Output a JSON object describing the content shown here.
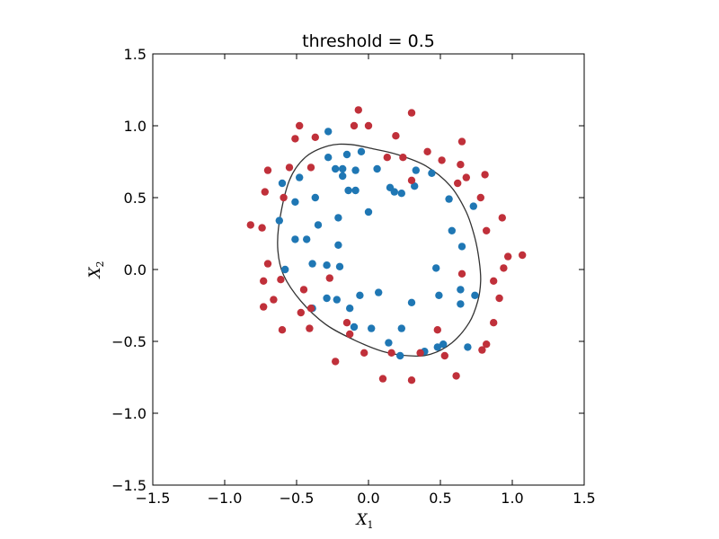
{
  "chart_data": {
    "type": "scatter",
    "title": "threshold = 0.5",
    "xlabel": "X",
    "xlabel_sub": "1",
    "ylabel": "X",
    "ylabel_sub": "2",
    "xlim": [
      -1.5,
      1.5
    ],
    "ylim": [
      -1.5,
      1.5
    ],
    "xticks": [
      -1.5,
      -1.0,
      -0.5,
      0.0,
      0.5,
      1.0,
      1.5
    ],
    "yticks": [
      -1.5,
      -1.0,
      -0.5,
      0.0,
      0.5,
      1.0,
      1.5
    ],
    "xtick_labels": [
      "−1.5",
      "−1.0",
      "−0.5",
      "0.0",
      "0.5",
      "1.0",
      "1.5"
    ],
    "ytick_labels": [
      "−1.5",
      "−1.0",
      "−0.5",
      "0.0",
      "0.5",
      "1.0",
      "1.5"
    ],
    "grid": false,
    "series": [
      {
        "color": "#1f77b4",
        "points": [
          [
            -0.28,
            0.96
          ],
          [
            -0.05,
            0.82
          ],
          [
            -0.15,
            0.8
          ],
          [
            -0.28,
            0.78
          ],
          [
            -0.23,
            0.7
          ],
          [
            -0.18,
            0.7
          ],
          [
            -0.09,
            0.69
          ],
          [
            0.06,
            0.7
          ],
          [
            0.33,
            0.69
          ],
          [
            0.44,
            0.67
          ],
          [
            -0.18,
            0.65
          ],
          [
            -0.48,
            0.64
          ],
          [
            -0.6,
            0.6
          ],
          [
            0.32,
            0.58
          ],
          [
            0.15,
            0.57
          ],
          [
            -0.14,
            0.55
          ],
          [
            -0.09,
            0.55
          ],
          [
            0.23,
            0.53
          ],
          [
            0.18,
            0.54
          ],
          [
            -0.37,
            0.5
          ],
          [
            -0.51,
            0.47
          ],
          [
            0.56,
            0.49
          ],
          [
            0.73,
            0.44
          ],
          [
            0.0,
            0.4
          ],
          [
            -0.21,
            0.36
          ],
          [
            -0.62,
            0.34
          ],
          [
            -0.35,
            0.31
          ],
          [
            0.58,
            0.27
          ],
          [
            -0.51,
            0.21
          ],
          [
            -0.43,
            0.21
          ],
          [
            -0.21,
            0.17
          ],
          [
            0.65,
            0.16
          ],
          [
            -0.39,
            0.04
          ],
          [
            -0.29,
            0.03
          ],
          [
            -0.2,
            0.02
          ],
          [
            0.47,
            0.01
          ],
          [
            -0.58,
            0.0
          ],
          [
            0.64,
            -0.14
          ],
          [
            0.07,
            -0.16
          ],
          [
            -0.06,
            -0.18
          ],
          [
            0.49,
            -0.18
          ],
          [
            0.74,
            -0.18
          ],
          [
            -0.29,
            -0.2
          ],
          [
            -0.22,
            -0.21
          ],
          [
            0.3,
            -0.23
          ],
          [
            0.64,
            -0.24
          ],
          [
            -0.13,
            -0.27
          ],
          [
            -0.39,
            -0.27
          ],
          [
            -0.1,
            -0.4
          ],
          [
            0.02,
            -0.41
          ],
          [
            0.23,
            -0.41
          ],
          [
            0.14,
            -0.51
          ],
          [
            0.52,
            -0.52
          ],
          [
            0.48,
            -0.54
          ],
          [
            0.69,
            -0.54
          ],
          [
            0.39,
            -0.57
          ],
          [
            0.22,
            -0.6
          ]
        ]
      },
      {
        "color": "#c0303a",
        "points": [
          [
            -0.07,
            1.11
          ],
          [
            0.3,
            1.09
          ],
          [
            -0.48,
            1.0
          ],
          [
            -0.1,
            1.0
          ],
          [
            0.0,
            1.0
          ],
          [
            -0.37,
            0.92
          ],
          [
            0.19,
            0.93
          ],
          [
            -0.51,
            0.91
          ],
          [
            0.65,
            0.89
          ],
          [
            0.41,
            0.82
          ],
          [
            0.13,
            0.78
          ],
          [
            0.24,
            0.78
          ],
          [
            0.51,
            0.76
          ],
          [
            0.64,
            0.73
          ],
          [
            -0.55,
            0.71
          ],
          [
            -0.4,
            0.71
          ],
          [
            -0.7,
            0.69
          ],
          [
            0.81,
            0.66
          ],
          [
            0.68,
            0.64
          ],
          [
            0.3,
            0.62
          ],
          [
            0.62,
            0.6
          ],
          [
            -0.72,
            0.54
          ],
          [
            -0.59,
            0.5
          ],
          [
            0.78,
            0.5
          ],
          [
            0.93,
            0.36
          ],
          [
            -0.82,
            0.31
          ],
          [
            -0.74,
            0.29
          ],
          [
            0.82,
            0.27
          ],
          [
            0.97,
            0.09
          ],
          [
            1.07,
            0.1
          ],
          [
            -0.7,
            0.04
          ],
          [
            0.94,
            0.01
          ],
          [
            0.65,
            -0.03
          ],
          [
            -0.73,
            -0.08
          ],
          [
            0.87,
            -0.08
          ],
          [
            -0.61,
            -0.07
          ],
          [
            -0.27,
            -0.06
          ],
          [
            -0.45,
            -0.14
          ],
          [
            0.91,
            -0.2
          ],
          [
            -0.66,
            -0.21
          ],
          [
            -0.73,
            -0.26
          ],
          [
            -0.4,
            -0.27
          ],
          [
            -0.47,
            -0.3
          ],
          [
            0.87,
            -0.37
          ],
          [
            -0.15,
            -0.37
          ],
          [
            -0.41,
            -0.41
          ],
          [
            -0.6,
            -0.42
          ],
          [
            0.48,
            -0.42
          ],
          [
            -0.13,
            -0.45
          ],
          [
            0.82,
            -0.52
          ],
          [
            0.79,
            -0.56
          ],
          [
            -0.03,
            -0.58
          ],
          [
            0.16,
            -0.58
          ],
          [
            0.36,
            -0.58
          ],
          [
            0.53,
            -0.6
          ],
          [
            -0.23,
            -0.64
          ],
          [
            0.61,
            -0.74
          ],
          [
            0.1,
            -0.76
          ],
          [
            0.3,
            -0.77
          ]
        ]
      }
    ],
    "boundary": {
      "color": "#333333",
      "points": [
        [
          -0.62,
          0.33
        ],
        [
          -0.55,
          0.62
        ],
        [
          -0.44,
          0.78
        ],
        [
          -0.28,
          0.86
        ],
        [
          -0.13,
          0.87
        ],
        [
          0.03,
          0.84
        ],
        [
          0.2,
          0.8
        ],
        [
          0.4,
          0.72
        ],
        [
          0.57,
          0.58
        ],
        [
          0.68,
          0.4
        ],
        [
          0.74,
          0.22
        ],
        [
          0.77,
          0.06
        ],
        [
          0.78,
          -0.08
        ],
        [
          0.76,
          -0.22
        ],
        [
          0.7,
          -0.37
        ],
        [
          0.58,
          -0.51
        ],
        [
          0.43,
          -0.59
        ],
        [
          0.28,
          -0.6
        ],
        [
          0.1,
          -0.57
        ],
        [
          -0.1,
          -0.49
        ],
        [
          -0.3,
          -0.38
        ],
        [
          -0.47,
          -0.22
        ],
        [
          -0.59,
          -0.04
        ],
        [
          -0.63,
          0.13
        ],
        [
          -0.62,
          0.33
        ]
      ]
    }
  }
}
